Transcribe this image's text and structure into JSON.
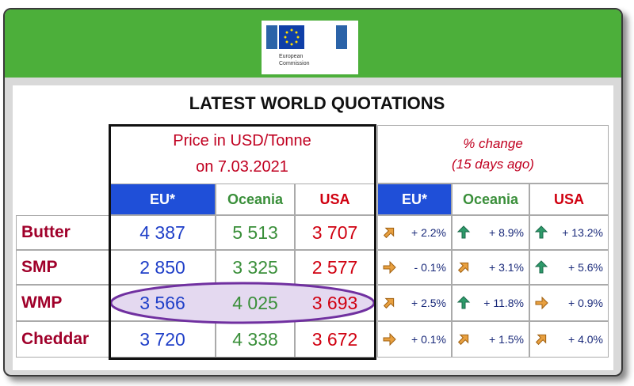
{
  "logo": {
    "lines": [
      "European",
      "Commission"
    ]
  },
  "title": "LATEST WORLD QUOTATIONS",
  "price_header": [
    "Price in USD/Tonne",
    "on 7.03.2021"
  ],
  "change_header": [
    "% change",
    "(15 days ago)"
  ],
  "columns": [
    "EU*",
    "Oceania",
    "USA"
  ],
  "rows": [
    {
      "product": "Butter",
      "prices": [
        "4 387",
        "5 513",
        "3 707"
      ],
      "changes": [
        "+ 2.2%",
        "+ 8.9%",
        "+ 13.2%"
      ]
    },
    {
      "product": "SMP",
      "prices": [
        "2 850",
        "3 325",
        "2 577"
      ],
      "changes": [
        "- 0.1%",
        "+ 3.1%",
        "+ 5.6%"
      ]
    },
    {
      "product": "WMP",
      "prices": [
        "3 566",
        "4 025",
        "3 693"
      ],
      "changes": [
        "+ 2.5%",
        "+ 11.8%",
        "+ 0.9%"
      ]
    },
    {
      "product": "Cheddar",
      "prices": [
        "3 720",
        "4 338",
        "3 672"
      ],
      "changes": [
        "+ 0.1%",
        "+ 1.5%",
        "+ 4.0%"
      ]
    }
  ]
}
